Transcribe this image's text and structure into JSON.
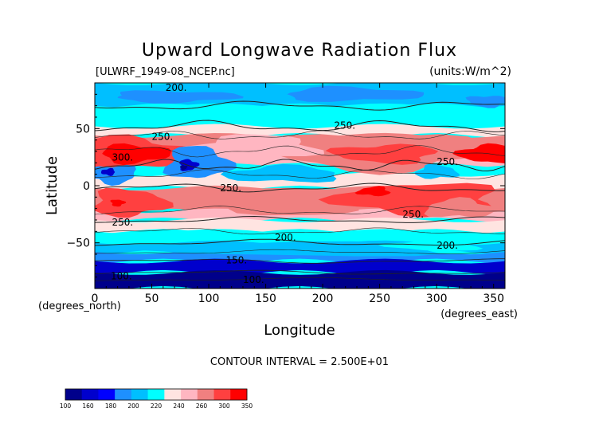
{
  "chart_data": {
    "type": "heatmap",
    "title": "Upward Longwave Radiation Flux",
    "source_label": "[ULWRF_1949-08_NCEP.nc]",
    "units_label": "(units:W/m^2)",
    "xlabel": "Longitude",
    "ylabel": "Latitude",
    "x_unit_label": "(degrees_east)",
    "y_unit_label": "(degrees_north)",
    "xlim": [
      0,
      360
    ],
    "ylim": [
      -90,
      90
    ],
    "x_ticks": [
      0,
      50,
      100,
      150,
      200,
      250,
      300,
      350
    ],
    "y_ticks": [
      -50,
      0,
      50
    ],
    "contour_interval_label": "CONTOUR INTERVAL = 2.500E+01",
    "contour_labels": [
      {
        "text": "200.",
        "lon": 62,
        "lat": 83
      },
      {
        "text": "200.",
        "lon": 158,
        "lat": -48
      },
      {
        "text": "200.",
        "lon": 300,
        "lat": -55
      },
      {
        "text": "250.",
        "lon": 50,
        "lat": 40
      },
      {
        "text": "250.",
        "lon": 210,
        "lat": 50
      },
      {
        "text": "250.",
        "lon": 300,
        "lat": 18
      },
      {
        "text": "250.",
        "lon": 110,
        "lat": -5
      },
      {
        "text": "250.",
        "lon": 15,
        "lat": -35
      },
      {
        "text": "250.",
        "lon": 270,
        "lat": -28
      },
      {
        "text": "300.",
        "lon": 15,
        "lat": 22
      },
      {
        "text": "150.",
        "lon": 115,
        "lat": -68
      },
      {
        "text": "100.",
        "lon": 14,
        "lat": -82
      },
      {
        "text": "100.",
        "lon": 130,
        "lat": -85
      }
    ],
    "colorbar": {
      "levels": [
        100,
        160,
        180,
        200,
        220,
        240,
        260,
        300,
        350
      ],
      "colors": [
        "#00008b",
        "#0000cd",
        "#0000ff",
        "#1e90ff",
        "#00bfff",
        "#00ffff",
        "#ffe4e1",
        "#ffb6c1",
        "#f08080",
        "#ff4040",
        "#ff0000"
      ]
    }
  }
}
